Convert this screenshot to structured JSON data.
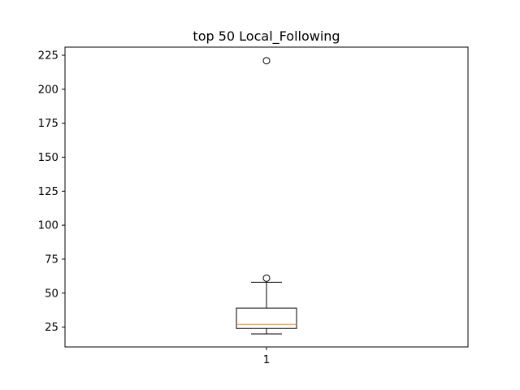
{
  "chart_data": {
    "type": "box",
    "title": "top 50 Local_Following",
    "xlabel": "",
    "ylabel": "",
    "categories": [
      "1"
    ],
    "x_ticks": [
      "1"
    ],
    "y_ticks": [
      25,
      50,
      75,
      100,
      125,
      150,
      175,
      200,
      225
    ],
    "ylim": [
      10.4,
      231.0
    ],
    "grid": false,
    "series": [
      {
        "whisker_low": 20,
        "q1": 24,
        "median": 27,
        "q3": 39,
        "whisker_high": 58,
        "outliers": [
          61,
          221
        ]
      }
    ],
    "colors": {
      "box": "#000000",
      "median": "#ff7f0e",
      "axes": "#000000",
      "background": "#ffffff"
    }
  }
}
